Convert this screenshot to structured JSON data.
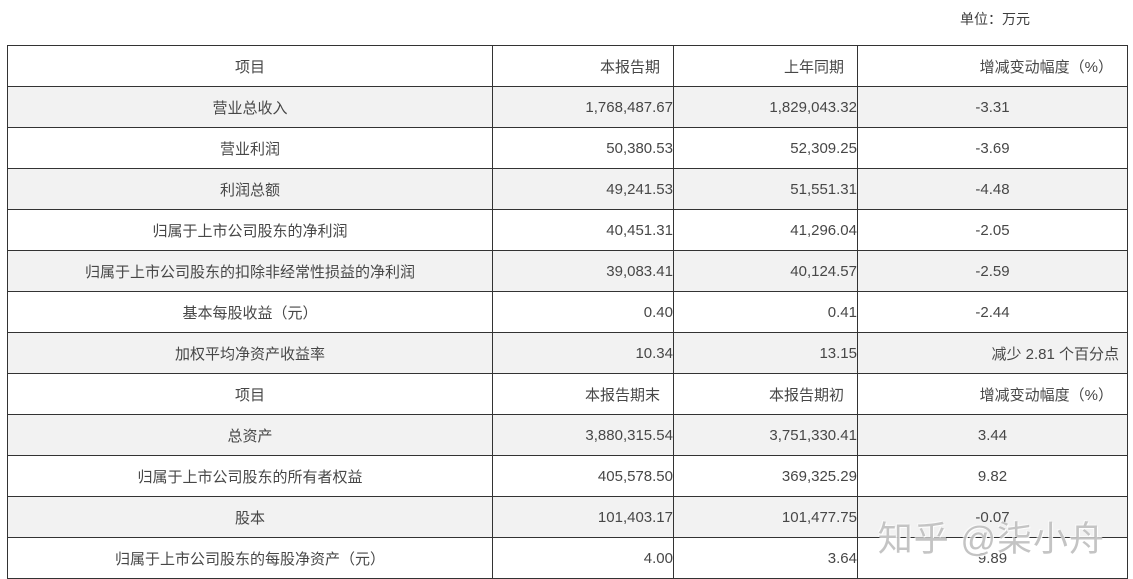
{
  "page": {
    "unit_label": "单位：万元",
    "watermark": "知乎 @柒小舟"
  },
  "colors": {
    "border": "#333333",
    "row_alt_background": "#f2f2f2",
    "text": "#474747",
    "watermark_gray": "#bababa"
  },
  "table": {
    "sections": [
      {
        "header": [
          "项目",
          "本报告期",
          "上年同期",
          "增减变动幅度（%）"
        ],
        "rows": [
          {
            "item": "营业总收入",
            "current": "1,768,487.67",
            "prior": "1,829,043.32",
            "change": "-3.31"
          },
          {
            "item": "营业利润",
            "current": "50,380.53",
            "prior": "52,309.25",
            "change": "-3.69"
          },
          {
            "item": "利润总额",
            "current": "49,241.53",
            "prior": "51,551.31",
            "change": "-4.48"
          },
          {
            "item": "归属于上市公司股东的净利润",
            "current": "40,451.31",
            "prior": "41,296.04",
            "change": "-2.05"
          },
          {
            "item": "归属于上市公司股东的扣除非经常性损益的净利润",
            "current": "39,083.41",
            "prior": "40,124.57",
            "change": "-2.59"
          },
          {
            "item": "基本每股收益（元）",
            "current": "0.40",
            "prior": "0.41",
            "change": "-2.44"
          },
          {
            "item": "加权平均净资产收益率",
            "current": "10.34",
            "prior": "13.15",
            "change": "减少 2.81 个百分点"
          }
        ]
      },
      {
        "header": [
          "项目",
          "本报告期末",
          "本报告期初",
          "增减变动幅度（%）"
        ],
        "rows": [
          {
            "item": "总资产",
            "current": "3,880,315.54",
            "prior": "3,751,330.41",
            "change": "3.44"
          },
          {
            "item": "归属于上市公司股东的所有者权益",
            "current": "405,578.50",
            "prior": "369,325.29",
            "change": "9.82"
          },
          {
            "item": "股本",
            "current": "101,403.17",
            "prior": "101,477.75",
            "change": "-0.07"
          },
          {
            "item": "归属于上市公司股东的每股净资产（元）",
            "current": "4.00",
            "prior": "3.64",
            "change": "9.89"
          }
        ]
      }
    ]
  }
}
